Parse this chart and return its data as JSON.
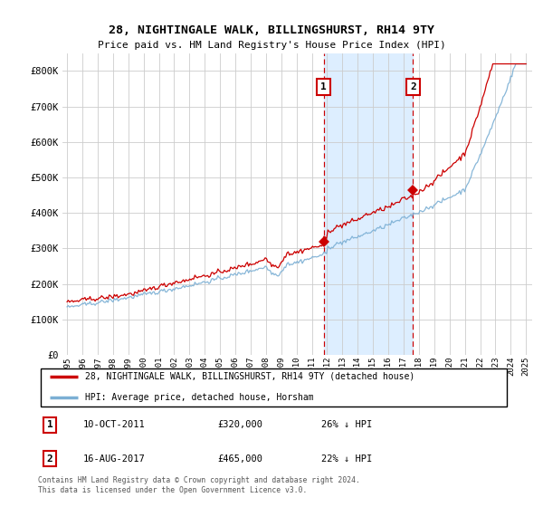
{
  "title": "28, NIGHTINGALE WALK, BILLINGSHURST, RH14 9TY",
  "subtitle": "Price paid vs. HM Land Registry's House Price Index (HPI)",
  "ylabel_ticks": [
    "£0",
    "£100K",
    "£200K",
    "£300K",
    "£400K",
    "£500K",
    "£600K",
    "£700K",
    "£800K"
  ],
  "ylim": [
    0,
    850000
  ],
  "sale1_year": 2011.77,
  "sale1_price": 320000,
  "sale2_year": 2017.62,
  "sale2_price": 465000,
  "hpi_color": "#7bafd4",
  "price_color": "#cc0000",
  "vline_color": "#cc0000",
  "shade_color": "#ddeeff",
  "legend_label1": "28, NIGHTINGALE WALK, BILLINGSHURST, RH14 9TY (detached house)",
  "legend_label2": "HPI: Average price, detached house, Horsham",
  "ann1_date": "10-OCT-2011",
  "ann1_price": "£320,000",
  "ann1_pct": "26% ↓ HPI",
  "ann2_date": "16-AUG-2017",
  "ann2_price": "£465,000",
  "ann2_pct": "22% ↓ HPI",
  "footer": "Contains HM Land Registry data © Crown copyright and database right 2024.\nThis data is licensed under the Open Government Licence v3.0.",
  "fig_width": 6.0,
  "fig_height": 5.6,
  "dpi": 100
}
